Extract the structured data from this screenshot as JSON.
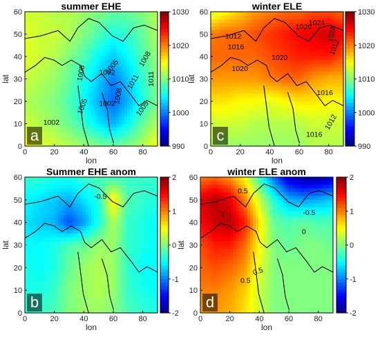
{
  "chart_data": [
    {
      "type": "heatmap",
      "panel": "a",
      "title": "summer EHE",
      "xlabel": "lon",
      "ylabel": "lat",
      "xticks": [
        "0",
        "20",
        "40",
        "60",
        "80"
      ],
      "yticks": [
        "0",
        "10",
        "20",
        "30",
        "40",
        "50",
        "60"
      ],
      "xlim": [
        0,
        90
      ],
      "ylim": [
        0,
        60
      ],
      "colorbar": {
        "min": 990,
        "max": 1030,
        "ticks": [
          "990",
          "1000",
          "1010",
          "1020",
          "1030"
        ]
      },
      "contour_labels": [
        "1008",
        "1008",
        "1005",
        "1005",
        "1002",
        "1002",
        "1011",
        "1011",
        "1008",
        "1005",
        "1002"
      ],
      "field": [
        [
          1015,
          1014,
          1013,
          1012,
          1011,
          1010,
          1009,
          1010,
          1012,
          1015
        ],
        [
          1013,
          1012,
          1011,
          1009,
          1007,
          1004,
          1002,
          1005,
          1009,
          1012
        ],
        [
          1012,
          1011,
          1010,
          1008,
          1005,
          1002,
          999,
          1002,
          1006,
          1010
        ],
        [
          1013,
          1012,
          1011,
          1009,
          1006,
          1003,
          1000,
          1003,
          1007,
          1010
        ],
        [
          1014,
          1013,
          1012,
          1010,
          1008,
          1005,
          1003,
          1005,
          1008,
          1011
        ],
        [
          1014,
          1013,
          1013,
          1012,
          1010,
          1008,
          1006,
          1007,
          1009,
          1012
        ],
        [
          1013,
          1013,
          1012,
          1012,
          1011,
          1010,
          1009,
          1009,
          1010,
          1012
        ]
      ]
    },
    {
      "type": "heatmap",
      "panel": "c",
      "title": "winter ELE",
      "xlabel": "lon",
      "ylabel": "lat",
      "xticks": [
        "0",
        "20",
        "40",
        "60",
        "80"
      ],
      "yticks": [
        "0",
        "10",
        "20",
        "30",
        "40",
        "50",
        "60"
      ],
      "xlim": [
        0,
        90
      ],
      "ylim": [
        0,
        60
      ],
      "colorbar": {
        "min": 990,
        "max": 1030,
        "ticks": [
          "990",
          "1000",
          "1010",
          "1020",
          "1030"
        ]
      },
      "contour_labels": [
        "1012",
        "1016",
        "1020",
        "1020",
        "1016",
        "1012",
        "1020",
        "1024",
        "1028",
        "1016",
        "1012"
      ],
      "field": [
        [
          1012,
          1011,
          1011,
          1011,
          1011,
          1011,
          1011,
          1012,
          1012,
          1012
        ],
        [
          1013,
          1013,
          1013,
          1012,
          1012,
          1012,
          1012,
          1013,
          1013,
          1013
        ],
        [
          1016,
          1016,
          1015,
          1015,
          1014,
          1015,
          1016,
          1016,
          1015,
          1015
        ],
        [
          1019,
          1019,
          1019,
          1019,
          1020,
          1021,
          1021,
          1019,
          1018,
          1018
        ],
        [
          1021,
          1021,
          1021,
          1021,
          1022,
          1023,
          1024,
          1024,
          1024,
          1022
        ],
        [
          1020,
          1021,
          1021,
          1022,
          1023,
          1024,
          1025,
          1026,
          1027,
          1025
        ],
        [
          1013,
          1015,
          1017,
          1019,
          1020,
          1021,
          1021,
          1022,
          1022,
          1021
        ]
      ]
    },
    {
      "type": "heatmap",
      "panel": "b",
      "title": "Summer EHE anom",
      "xlabel": "lon",
      "ylabel": "lat",
      "xticks": [
        "0",
        "20",
        "40",
        "60",
        "80"
      ],
      "yticks": [
        "0",
        "10",
        "20",
        "30",
        "40",
        "50",
        "60"
      ],
      "xlim": [
        0,
        90
      ],
      "ylim": [
        0,
        60
      ],
      "colorbar": {
        "min": -2,
        "max": 2,
        "ticks": [
          "-2",
          "-1",
          "0",
          "1",
          "2"
        ]
      },
      "contour_labels": [
        "-0.5"
      ],
      "field": [
        [
          -0.3,
          -0.3,
          -0.2,
          0.0,
          0.1,
          0.1,
          0.0,
          -0.2,
          -0.3,
          -0.4
        ],
        [
          -0.4,
          -0.4,
          -0.3,
          0.0,
          0.1,
          0.2,
          0.1,
          -0.3,
          -0.4,
          -0.5
        ],
        [
          -0.4,
          -0.5,
          -0.4,
          -0.1,
          0.1,
          0.2,
          0.1,
          -0.3,
          -0.5,
          -0.5
        ],
        [
          -0.5,
          -0.5,
          -0.4,
          -0.2,
          -0.1,
          0.1,
          0.1,
          -0.3,
          -0.4,
          -0.5
        ],
        [
          -0.6,
          -0.7,
          -0.8,
          -1.2,
          -0.9,
          -0.4,
          0.2,
          -0.3,
          -0.4,
          -0.5
        ],
        [
          -0.5,
          -0.6,
          -0.7,
          -0.8,
          -0.6,
          -0.4,
          0.6,
          -0.2,
          -0.3,
          -0.4
        ],
        [
          -0.3,
          -0.3,
          -0.4,
          -0.4,
          -0.3,
          -0.2,
          -0.3,
          -0.3,
          -0.3,
          -0.3
        ]
      ]
    },
    {
      "type": "heatmap",
      "panel": "d",
      "title": "winter ELE anom",
      "xlabel": "lon",
      "ylabel": "lat",
      "xticks": [
        "0",
        "20",
        "40",
        "60",
        "80"
      ],
      "yticks": [
        "0",
        "10",
        "20",
        "30",
        "40",
        "50",
        "60"
      ],
      "xlim": [
        0,
        90
      ],
      "ylim": [
        0,
        60
      ],
      "colorbar": {
        "min": -2,
        "max": 2,
        "ticks": [
          "-2",
          "-1",
          "0",
          "1",
          "2"
        ]
      },
      "contour_labels": [
        "0.5",
        "1",
        "0.5",
        "-0.5",
        "0",
        "0.5"
      ],
      "field": [
        [
          0.8,
          0.9,
          0.8,
          0.6,
          0.3,
          0.0,
          0.0,
          0.0,
          0.0,
          0.0
        ],
        [
          1.0,
          1.0,
          0.9,
          0.7,
          0.3,
          0.0,
          0.0,
          0.0,
          0.0,
          0.0
        ],
        [
          1.1,
          1.2,
          1.1,
          0.9,
          0.4,
          0.0,
          0.0,
          0.0,
          0.0,
          0.0
        ],
        [
          1.2,
          1.4,
          1.4,
          1.1,
          0.5,
          0.0,
          -0.1,
          0.0,
          0.0,
          -0.1
        ],
        [
          1.5,
          1.7,
          1.8,
          1.4,
          0.6,
          -0.1,
          -0.2,
          -0.1,
          -0.2,
          -0.2
        ],
        [
          1.6,
          1.8,
          1.6,
          1.0,
          0.3,
          -0.4,
          -0.8,
          -0.9,
          -0.8,
          -0.7
        ],
        [
          1.0,
          1.1,
          0.9,
          0.5,
          -0.3,
          -1.1,
          -1.7,
          -1.9,
          -1.9,
          -1.7
        ]
      ]
    }
  ]
}
